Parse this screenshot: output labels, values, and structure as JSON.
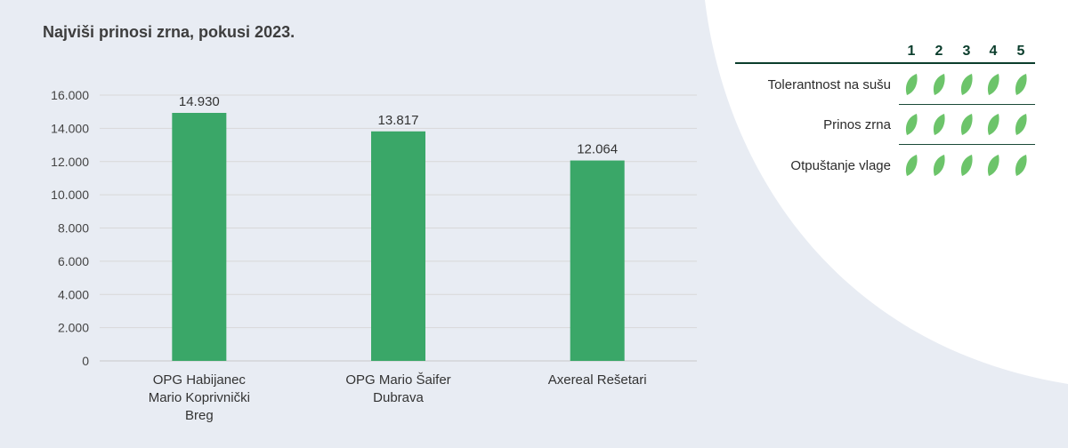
{
  "colors": {
    "background": "#e8ecf3",
    "panel": "#ffffff",
    "bar": "#3aa768",
    "leaf": "#6cc46a",
    "rule": "#0b3d2c"
  },
  "title": "Najviši prinosi zrna, pokusi 2023.",
  "chart_data": {
    "type": "bar",
    "categories": [
      "OPG Habijanec Mario Koprivnički Breg",
      "OPG Mario Šaifer Dubrava",
      "Axereal Rešetari"
    ],
    "category_lines": [
      [
        "OPG Habijanec",
        "Mario Koprivnički",
        "Breg"
      ],
      [
        "OPG Mario Šaifer",
        "Dubrava"
      ],
      [
        "Axereal Rešetari"
      ]
    ],
    "values": [
      14930,
      13817,
      12064
    ],
    "data_labels": [
      "14.930",
      "13.817",
      "12.064"
    ],
    "yticks": [
      0,
      2000,
      4000,
      6000,
      8000,
      10000,
      12000,
      14000,
      16000
    ],
    "ytick_labels": [
      "0",
      "2.000",
      "4.000",
      "6.000",
      "8.000",
      "10.000",
      "12.000",
      "14.000",
      "16.000"
    ],
    "ylim": [
      0,
      16000
    ],
    "grid": true,
    "xlabel": "",
    "ylabel": ""
  },
  "rating": {
    "columns": [
      "1",
      "2",
      "3",
      "4",
      "5"
    ],
    "icon": "leaf-icon",
    "rows": [
      {
        "label": "Tolerantnost na sušu",
        "score": 5
      },
      {
        "label": "Prinos zrna",
        "score": 5
      },
      {
        "label": "Otpuštanje vlage",
        "score": 5
      }
    ]
  }
}
